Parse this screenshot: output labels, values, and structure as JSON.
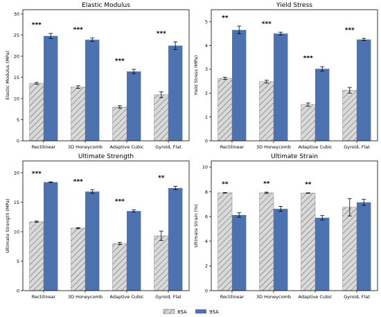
{
  "chart_data": [
    {
      "type": "bar",
      "title": "Elastic Modulus",
      "ylabel": "Elastic Modulus (MPa)",
      "categories": [
        "Rectilinear",
        "3D Honeycomb",
        "Adaptive Cubic",
        "Gyroid, Flat"
      ],
      "ylim": [
        0,
        31
      ],
      "yticks": [
        0,
        5,
        10,
        15,
        20,
        25,
        30
      ],
      "series": [
        {
          "name": "85A",
          "values": [
            13.6,
            12.7,
            8.0,
            10.9
          ],
          "errors": [
            0.2,
            0.3,
            0.3,
            0.7
          ]
        },
        {
          "name": "95A",
          "values": [
            24.8,
            23.9,
            16.4,
            22.5
          ],
          "errors": [
            0.6,
            0.4,
            0.5,
            0.9
          ]
        }
      ],
      "significance": [
        "***",
        "***",
        "***",
        "***"
      ]
    },
    {
      "type": "bar",
      "title": "Yield Stress",
      "ylabel": "Yield Stress (MPa)",
      "categories": [
        "Rectilinear",
        "3D Honeycomb",
        "Adaptive Cubic",
        "Gyroid, Flat"
      ],
      "ylim": [
        0,
        5.5
      ],
      "yticks": [
        0,
        1,
        2,
        3,
        4,
        5
      ],
      "series": [
        {
          "name": "85A",
          "values": [
            2.62,
            2.48,
            1.52,
            2.12
          ],
          "errors": [
            0.05,
            0.06,
            0.07,
            0.12
          ]
        },
        {
          "name": "95A",
          "values": [
            4.65,
            4.5,
            3.02,
            4.25
          ],
          "errors": [
            0.16,
            0.06,
            0.09,
            0.05
          ]
        }
      ],
      "significance": [
        "**",
        "***",
        "***",
        "***"
      ]
    },
    {
      "type": "bar",
      "title": "Ultimate Strength",
      "ylabel": "Ultimate Strength (MPa)",
      "categories": [
        "Rectilinear",
        "3D Honeycomb",
        "Adaptive Cubic",
        "Gyroid, Flat"
      ],
      "ylim": [
        0,
        22
      ],
      "yticks": [
        0,
        5,
        10,
        15,
        20
      ],
      "series": [
        {
          "name": "85A",
          "values": [
            11.7,
            10.6,
            8.0,
            9.3
          ],
          "errors": [
            0.1,
            0.1,
            0.2,
            0.8
          ]
        },
        {
          "name": "95A",
          "values": [
            18.4,
            16.8,
            13.5,
            17.4
          ],
          "errors": [
            0.05,
            0.3,
            0.2,
            0.3
          ]
        }
      ],
      "significance": [
        "***",
        "***",
        "***",
        "**"
      ]
    },
    {
      "type": "bar",
      "title": "Ultimate Strain",
      "ylabel": "Ultimate Strain (%)",
      "categories": [
        "Rectilinear",
        "3D Honeycomb",
        "Adaptive Cubic",
        "Gyroid, Flat"
      ],
      "ylim": [
        0,
        10.5
      ],
      "yticks": [
        0,
        2,
        4,
        6,
        8,
        10
      ],
      "series": [
        {
          "name": "85A",
          "values": [
            7.92,
            7.92,
            7.9,
            6.75
          ],
          "errors": [
            0.02,
            0.05,
            0.02,
            0.7
          ]
        },
        {
          "name": "95A",
          "values": [
            6.12,
            6.62,
            5.9,
            7.15
          ],
          "errors": [
            0.18,
            0.2,
            0.18,
            0.25
          ]
        }
      ],
      "significance": [
        "**",
        "**",
        "**",
        ""
      ]
    }
  ],
  "legend": [
    {
      "label": "85A",
      "color": "#d9d9d9",
      "hatch": true
    },
    {
      "label": "95A",
      "color": "#4c72b0",
      "hatch": false
    }
  ],
  "colors": {
    "series_85A": "#d9d9d9",
    "series_95A": "#4c72b0"
  }
}
